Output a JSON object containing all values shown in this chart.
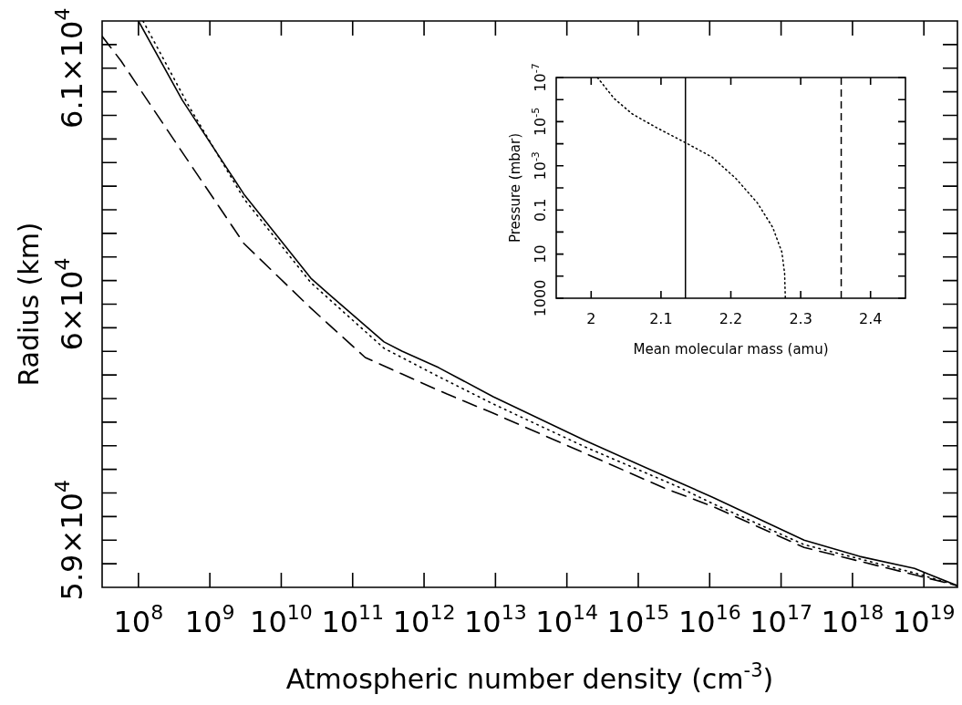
{
  "chart_data": [
    {
      "type": "line",
      "xlabel": "Atmospheric number density (cm$^{-3}$)",
      "ylabel": "Radius (km)",
      "log": "x",
      "marker": "none",
      "xlim": [
        31000000.0,
        2.95e+19
      ],
      "ylim": [
        58800,
        61200
      ],
      "xticks": [
        {
          "value": 100000000.0,
          "label": "10$^{8}$"
        },
        {
          "value": 1000000000.0,
          "label": "10$^{9}$"
        },
        {
          "value": 10000000000.0,
          "label": "10$^{10}$"
        },
        {
          "value": 100000000000.0,
          "label": "10$^{11}$"
        },
        {
          "value": 1000000000000.0,
          "label": "10$^{12}$"
        },
        {
          "value": 10000000000000.0,
          "label": "10$^{13}$"
        },
        {
          "value": 100000000000000.0,
          "label": "10$^{14}$"
        },
        {
          "value": 1000000000000000.0,
          "label": "10$^{15}$"
        },
        {
          "value": 1e+16,
          "label": "10$^{16}$"
        },
        {
          "value": 1e+17,
          "label": "10$^{17}$"
        },
        {
          "value": 1e+18,
          "label": "10$^{18}$"
        },
        {
          "value": 1e+19,
          "label": "10$^{19}$"
        }
      ],
      "yticks": [
        {
          "value": 58900,
          "label": null
        },
        {
          "value": 59000,
          "label": "5.9×10$^{4}$"
        },
        {
          "value": 59100,
          "label": null
        },
        {
          "value": 59200,
          "label": null
        },
        {
          "value": 59300,
          "label": null
        },
        {
          "value": 59400,
          "label": null
        },
        {
          "value": 59500,
          "label": null
        },
        {
          "value": 59600,
          "label": null
        },
        {
          "value": 59700,
          "label": null
        },
        {
          "value": 59800,
          "label": null
        },
        {
          "value": 59900,
          "label": null
        },
        {
          "value": 60000,
          "label": "6×10$^{4}$"
        },
        {
          "value": 60100,
          "label": null
        },
        {
          "value": 60200,
          "label": null
        },
        {
          "value": 60300,
          "label": null
        },
        {
          "value": 60400,
          "label": null
        },
        {
          "value": 60500,
          "label": null
        },
        {
          "value": 60600,
          "label": null
        },
        {
          "value": 60700,
          "label": null
        },
        {
          "value": 60800,
          "label": null
        },
        {
          "value": 60900,
          "label": null
        },
        {
          "value": 61000,
          "label": "6.1×10$^{4}$"
        },
        {
          "value": 61100,
          "label": null
        }
      ],
      "series": [
        {
          "color": "#000000",
          "line_style": "solid",
          "x": [
            100000000.0,
            410000000.0,
            3000000000.0,
            26000000000.0,
            47000000000.0,
            275000000000.0,
            490000000000.0,
            1600000000000.0,
            9300000000000.0,
            180000000000000.0,
            3500000000000000.0,
            1.1e+16,
            2.1e+17,
            1.26e+18,
            7.4e+18,
            2.95e+19
          ],
          "values": [
            61200,
            60865,
            60466,
            60110,
            60041,
            59840,
            59801,
            59731,
            59608,
            59422,
            59248,
            59182,
            59000,
            58931,
            58880,
            58807
          ]
        },
        {
          "color": "#000000",
          "line_style": "dotted",
          "x": [
            116000000.0,
            510000000.0,
            3000000000.0,
            26000000000.0,
            275000000000.0,
            1600000000000.0,
            9300000000000.0,
            180000000000000.0,
            3500000000000000.0,
            1.1e+16,
            2.1e+17,
            7.4e+18,
            2.95e+19
          ],
          "values": [
            61200,
            60838,
            60447,
            60091,
            59813,
            59693,
            59577,
            59395,
            59228,
            59155,
            58981,
            58861,
            58807
          ]
        },
        {
          "color": "#000000",
          "line_style": "dashed",
          "x": [
            31000000.0,
            57000000.0,
            410000000.0,
            3000000000.0,
            26000000000.0,
            150000000000.0,
            490000000000.0,
            2100000000000.0,
            9300000000000.0,
            180000000000000.0,
            2300000000000000.0,
            1.1e+16,
            2.1e+17,
            7.4e+18,
            2.95e+19
          ],
          "values": [
            61135,
            61031,
            60644,
            60257,
            59983,
            59774,
            59704,
            59619,
            59538,
            59368,
            59221,
            59143,
            58969,
            58853,
            58807
          ]
        }
      ]
    },
    {
      "type": "line",
      "xlabel": "Mean molecular mass (amu)",
      "ylabel": "Pressure (mbar)",
      "log": "y",
      "marker": "none",
      "xlim": [
        1.95,
        2.45
      ],
      "ylim": [
        1000,
        1e-07
      ],
      "xticks": [
        2,
        2.1,
        2.2,
        2.3,
        2.4
      ],
      "yticks": [
        1000,
        {
          "value": 100,
          "label": null
        },
        10,
        {
          "value": 1,
          "label": null
        },
        0.1,
        {
          "value": 0.01,
          "label": null
        },
        {
          "value": 0.001,
          "label": "10$^{-3}$"
        },
        {
          "value": 0.0001,
          "label": null
        },
        {
          "value": 1e-05,
          "label": "10$^{-5}$"
        },
        {
          "value": 1e-06,
          "label": null
        },
        {
          "value": 1e-07,
          "label": "10$^{-7}$"
        }
      ],
      "series": [
        {
          "color": "#000000",
          "line_style": "dotted",
          "x": [
            2.009,
            2.033,
            2.059,
            2.094,
            2.136,
            2.173,
            2.207,
            2.238,
            2.26,
            2.273,
            2.277,
            2.278
          ],
          "values": [
            1e-07,
            9e-07,
            4.5e-06,
            1.9e-05,
            9.3e-05,
            0.0004,
            0.0037,
            0.048,
            0.62,
            8,
            75,
            1000
          ]
        }
      ],
      "ref_lines": [
        {
          "axis": "x",
          "value": 2.135,
          "color": "#000000",
          "line_style": "solid"
        },
        {
          "axis": "x",
          "value": 2.358,
          "color": "#000000",
          "line_style": "dashed"
        }
      ]
    }
  ]
}
